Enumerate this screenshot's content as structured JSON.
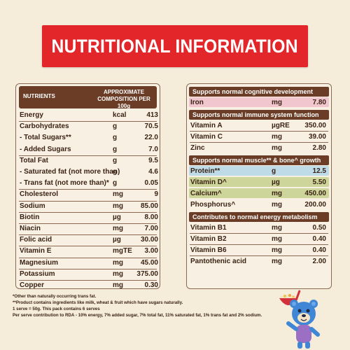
{
  "banner": {
    "title": "NUTRITIONAL INFORMATION"
  },
  "left_table": {
    "header_nutrients": "NUTRIENTS",
    "header_comp_line1": "APPROXIMATE",
    "header_comp_line2": "COMPOSITION PER 100g",
    "rows": [
      {
        "name": "Energy",
        "unit": "kcal",
        "value": "413"
      },
      {
        "name": "Carbohydrates",
        "unit": "g",
        "value": "70.5"
      },
      {
        "name": "- Total Sugars**",
        "unit": "g",
        "value": "22.0"
      },
      {
        "name": "- Added Sugars",
        "unit": "g",
        "value": "7.0"
      },
      {
        "name": "Total Fat",
        "unit": "g",
        "value": "9.5"
      },
      {
        "name": "- Saturated fat (not more than)",
        "unit": "g",
        "value": "4.6"
      },
      {
        "name": "- Trans fat (not more than)*",
        "unit": "g",
        "value": "0.05"
      },
      {
        "name": "Cholesterol",
        "unit": "mg",
        "value": "9"
      },
      {
        "name": "Sodium",
        "unit": "mg",
        "value": "85.00"
      },
      {
        "name": "Biotin",
        "unit": "µg",
        "value": "8.00"
      },
      {
        "name": "Niacin",
        "unit": "mg",
        "value": "7.00"
      },
      {
        "name": "Folic acid",
        "unit": "µg",
        "value": "30.00"
      },
      {
        "name": "Vitamin E",
        "unit": "mgTE",
        "value": "3.00"
      },
      {
        "name": "Magnesium",
        "unit": "mg",
        "value": "45.00"
      },
      {
        "name": "Potassium",
        "unit": "mg",
        "value": "375.00"
      },
      {
        "name": "Copper",
        "unit": "mg",
        "value": "0.30"
      }
    ]
  },
  "right_table": {
    "sections": [
      {
        "title": "Supports normal cognitive development",
        "rows": [
          {
            "name": "Iron",
            "unit": "mg",
            "value": "7.80",
            "highlight": "#f2c6cf"
          }
        ]
      },
      {
        "title": "Supports normal immune system function",
        "rows": [
          {
            "name": "Vitamin A",
            "unit": "µgRE",
            "value": "350.00",
            "highlight": ""
          },
          {
            "name": "Vitamin C",
            "unit": "mg",
            "value": "39.00",
            "highlight": ""
          },
          {
            "name": "Zinc",
            "unit": "mg",
            "value": "2.80",
            "highlight": ""
          }
        ]
      },
      {
        "title": "Supports normal muscle** & bone^ growth",
        "rows": [
          {
            "name": "Protein**",
            "unit": "g",
            "value": "12.5",
            "highlight": "#bfdbe8"
          },
          {
            "name": "Vitamin D^",
            "unit": "µg",
            "value": "5.50",
            "highlight": "#cdd59a"
          },
          {
            "name": "Calcium^",
            "unit": "mg",
            "value": "450.00",
            "highlight": "#cdd59a"
          },
          {
            "name": "Phosphorus^",
            "unit": "mg",
            "value": "200.00",
            "highlight": ""
          }
        ]
      },
      {
        "title": "Contributes to normal energy metabolism",
        "rows": [
          {
            "name": "Vitamin B1",
            "unit": "mg",
            "value": "0.50",
            "highlight": ""
          },
          {
            "name": "Vitamin B2",
            "unit": "mg",
            "value": "0.40",
            "highlight": ""
          },
          {
            "name": "Vitamin B6",
            "unit": "mg",
            "value": "0.40",
            "highlight": ""
          },
          {
            "name": "Pantothenic acid",
            "unit": "mg",
            "value": "2.00",
            "highlight": ""
          }
        ]
      }
    ]
  },
  "footnotes": {
    "line1": "*Other than naturally occurring trans fat.",
    "line2": "**Product contains ingredients like milk, wheat & fruit which have sugars naturally.",
    "line3": "1 serve = 50g. This pack contains 6 serves",
    "line4": "Per serve contribution to RDA - 10% energy, 7% added sugar, 7% total fat, 11% saturated fat, 1% trans fat and 2% sodium."
  },
  "colors": {
    "background": "#f5ecd9",
    "banner": "#e3262a",
    "header_brown": "#6b3d26",
    "iron_highlight": "#f2c6cf",
    "protein_highlight": "#bfdbe8",
    "vitd_calcium_highlight": "#cdd59a"
  }
}
